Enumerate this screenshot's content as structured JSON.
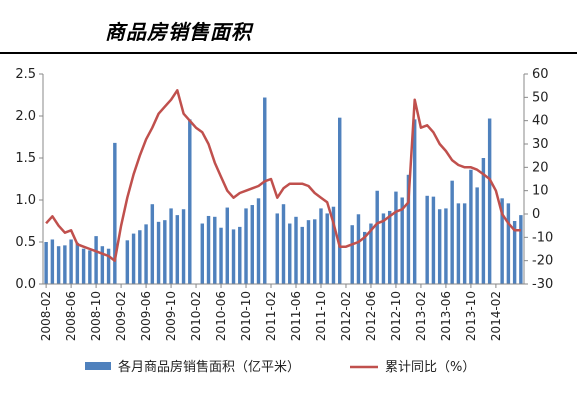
{
  "header": {
    "title": "商品房销售面积"
  },
  "chart_data": {
    "type": "bar",
    "title": "商品房销售面积",
    "x_tick_labels": [
      "2008-02",
      "2008-06",
      "2008-10",
      "2009-02",
      "2009-06",
      "2009-10",
      "2010-02",
      "2010-06",
      "2010-10",
      "2011-02",
      "2011-06",
      "2011-10",
      "2012-02",
      "2012-06",
      "2012-10",
      "2013-02",
      "2013-06",
      "2013-10",
      "2014-02"
    ],
    "y_left": {
      "range": [
        0,
        2.5
      ],
      "ticks": [
        "0.0",
        "0.5",
        "1.0",
        "1.5",
        "2.0",
        "2.5"
      ]
    },
    "y_right": {
      "range": [
        -30,
        60
      ],
      "ticks": [
        "-30",
        "-20",
        "-10",
        "0",
        "10",
        "20",
        "30",
        "40",
        "50",
        "60"
      ]
    },
    "grid": false,
    "legend_position": "bottom",
    "series": [
      {
        "name": "各月商品房销售面积（亿平米）",
        "type": "bar",
        "axis": "left",
        "color": "#4F81BD",
        "values": [
          0.5,
          0.53,
          0.45,
          0.46,
          0.53,
          0.49,
          0.42,
          0.4,
          0.57,
          0.45,
          0.42,
          1.68,
          0.0,
          0.52,
          0.6,
          0.64,
          0.71,
          0.95,
          0.74,
          0.76,
          0.9,
          0.82,
          0.89,
          1.96,
          0.0,
          0.72,
          0.81,
          0.8,
          0.67,
          0.91,
          0.65,
          0.68,
          0.9,
          0.94,
          1.02,
          2.22,
          0.0,
          0.84,
          0.95,
          0.72,
          0.8,
          0.68,
          0.76,
          0.77,
          0.9,
          0.84,
          0.92,
          1.98,
          0.0,
          0.7,
          0.83,
          0.62,
          0.72,
          1.11,
          0.84,
          0.87,
          1.1,
          1.03,
          1.3,
          1.96,
          0.0,
          1.05,
          1.04,
          0.89,
          0.9,
          1.23,
          0.96,
          0.96,
          1.36,
          1.15,
          1.5,
          1.97,
          0.0,
          1.02,
          0.96,
          0.75,
          0.82
        ]
      },
      {
        "name": "累计同比（%）",
        "type": "line",
        "axis": "right",
        "color": "#C0504D",
        "values": [
          -4,
          -1,
          -5,
          -8,
          -7,
          -13,
          -14,
          -15,
          -16,
          -17,
          -18,
          -20,
          -5,
          7,
          17,
          25,
          32,
          37,
          43,
          46,
          49,
          53,
          43,
          40,
          37,
          35,
          30,
          22,
          16,
          10,
          7,
          9,
          10,
          11,
          12,
          14,
          15,
          7,
          11,
          13,
          13,
          13,
          12,
          9,
          7,
          5,
          -4,
          -14,
          -14,
          -13,
          -12,
          -10,
          -7,
          -4,
          -3,
          -1,
          1,
          2,
          5,
          49,
          37,
          38,
          35,
          30,
          27,
          23,
          21,
          20,
          20,
          19,
          17,
          15,
          10,
          0,
          -4,
          -7,
          -7
        ]
      }
    ]
  }
}
